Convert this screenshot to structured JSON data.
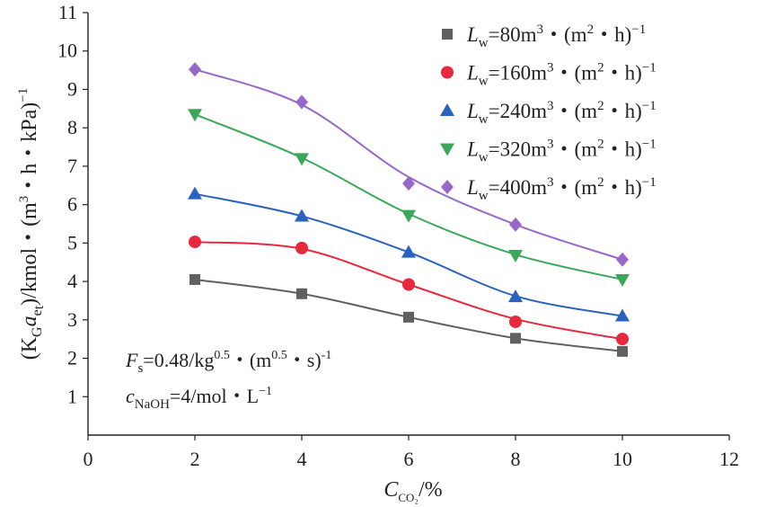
{
  "chart_data": {
    "type": "scatter",
    "x": [
      2,
      4,
      6,
      8,
      10
    ],
    "xlim": [
      0,
      12
    ],
    "ylim": [
      0,
      11
    ],
    "x_ticks": [
      "0",
      "2",
      "4",
      "6",
      "8",
      "10",
      "12"
    ],
    "y_ticks": [
      "1",
      "2",
      "3",
      "4",
      "5",
      "6",
      "7",
      "8",
      "9",
      "10",
      "11"
    ],
    "xlabel": {
      "main": "C",
      "sub": "CO₂",
      "unit": "/%"
    },
    "ylabel": {
      "p1": "(K",
      "sub1": "G",
      "p2": "a",
      "sub2": "e",
      "sub3": "t",
      "p3": ")/kmol・(m",
      "sup1": "3",
      "p4": "・h・kPa)",
      "sup2": "−1"
    },
    "legend_position": "top-right",
    "series": [
      {
        "name": "L_w=80",
        "legend": {
          "base": "L",
          "sub": "w",
          "value": "=80m",
          "sup1": "3",
          "mid": "・(m",
          "sup2": "2",
          "end": "・h)",
          "sup3": "−1"
        },
        "marker": "square",
        "color": "#606060",
        "values": [
          4.05,
          3.68,
          3.07,
          2.52,
          2.18
        ],
        "fit": [
          4.05,
          3.68,
          3.07,
          2.52,
          2.18
        ]
      },
      {
        "name": "L_w=160",
        "legend": {
          "base": "L",
          "sub": "w",
          "value": "=160m",
          "sup1": "3",
          "mid": "・(m",
          "sup2": "2",
          "end": "・h)",
          "sup3": "−1"
        },
        "marker": "circle",
        "color": "#e8283c",
        "values": [
          5.03,
          4.87,
          3.92,
          2.95,
          2.5
        ],
        "fit": [
          5.03,
          4.85,
          3.92,
          3.02,
          2.5
        ]
      },
      {
        "name": "L_w=240",
        "legend": {
          "base": "L",
          "sub": "w",
          "value": "=240m",
          "sup1": "3",
          "mid": "・(m",
          "sup2": "2",
          "end": "・h)",
          "sup3": "−1"
        },
        "marker": "triangle-up",
        "color": "#2a62c0",
        "values": [
          6.28,
          5.7,
          4.76,
          3.6,
          3.1
        ],
        "fit": [
          6.28,
          5.7,
          4.76,
          3.62,
          3.1
        ]
      },
      {
        "name": "L_w=320",
        "legend": {
          "base": "L",
          "sub": "w",
          "value": "=320m",
          "sup1": "3",
          "mid": "・(m",
          "sup2": "2",
          "end": "・h)",
          "sup3": "−1"
        },
        "marker": "triangle-down",
        "color": "#3aa858",
        "values": [
          8.35,
          7.2,
          5.72,
          4.68,
          4.05
        ],
        "fit": [
          8.35,
          7.22,
          5.76,
          4.7,
          4.05
        ]
      },
      {
        "name": "L_w=400",
        "legend": {
          "base": "L",
          "sub": "w",
          "value": "=400m",
          "sup1": "3",
          "mid": "・(m",
          "sup2": "2",
          "end": "・h)",
          "sup3": "−1"
        },
        "marker": "diamond",
        "color": "#9868c8",
        "values": [
          9.52,
          8.67,
          6.55,
          5.48,
          4.57
        ],
        "fit": [
          9.52,
          8.6,
          6.72,
          5.48,
          4.57
        ]
      }
    ],
    "annotations": {
      "line1": {
        "p1": "F",
        "sub1": "s",
        "p2": "=0.48/kg",
        "sup1": "0.5",
        "p3": "・(m",
        "sup2": "0.5",
        "p4": "・s)",
        "sup3": "-1"
      },
      "line2": {
        "p1": "c",
        "sub1": "NaOH",
        "p2": "=4/mol・L",
        "sup1": "−1"
      }
    }
  }
}
